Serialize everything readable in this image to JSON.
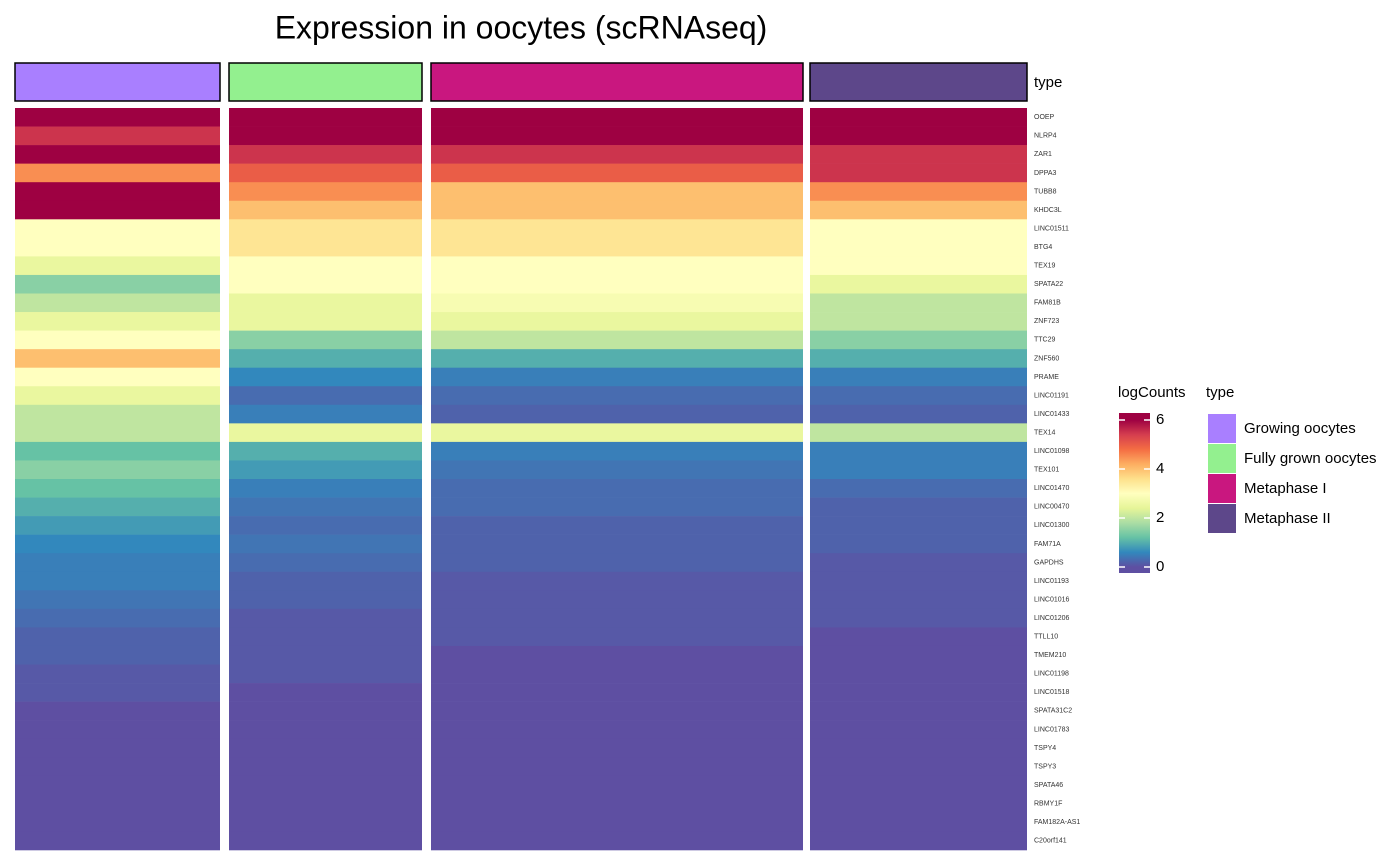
{
  "chart_data": {
    "type": "heatmap",
    "title": "Expression in oocytes (scRNAseq)",
    "annotation_label": "type",
    "categories": [
      "Growing oocytes",
      "Fully grown oocytes",
      "Metaphase I",
      "Metaphase II"
    ],
    "category_colors": [
      "#A97FFF",
      "#93F08F",
      "#C9177F",
      "#5D478A"
    ],
    "rows": [
      "OOEP",
      "NLRP4",
      "ZAR1",
      "DPPA3",
      "TUBB8",
      "KHDC3L",
      "LINC01511",
      "BTG4",
      "TEX19",
      "SPATA22",
      "FAM81B",
      "ZNF723",
      "TTC29",
      "ZNF560",
      "PRAME",
      "LINC01191",
      "LINC01433",
      "TEX14",
      "LINC01098",
      "TEX101",
      "LINC01470",
      "LINC00470",
      "LINC01300",
      "FAM71A",
      "GAPDHS",
      "LINC01193",
      "LINC01016",
      "LINC01206",
      "TTLL10",
      "TMEM210",
      "LINC01198",
      "LINC01518",
      "SPATA31C2",
      "LINC01783",
      "TSPY4",
      "TSPY3",
      "SPATA46",
      "RBMY1F",
      "FAM182A-AS1",
      "C20orf141"
    ],
    "values": [
      [
        6,
        6,
        6,
        6
      ],
      [
        5.5,
        6,
        6,
        6
      ],
      [
        6,
        5.5,
        5.5,
        5.5
      ],
      [
        4.5,
        5,
        5,
        5.5
      ],
      [
        6,
        4.5,
        4,
        4.5
      ],
      [
        6,
        4,
        4,
        4
      ],
      [
        3,
        3.5,
        3.5,
        3
      ],
      [
        3,
        3.5,
        3.5,
        3
      ],
      [
        2.5,
        3,
        3,
        3
      ],
      [
        1.5,
        3,
        3,
        2.5
      ],
      [
        2,
        2.5,
        2.8,
        2
      ],
      [
        2.5,
        2.5,
        2.5,
        2
      ],
      [
        3,
        1.5,
        2,
        1.5
      ],
      [
        4,
        1,
        1,
        1
      ],
      [
        3,
        0.6,
        0.5,
        0.5
      ],
      [
        2.5,
        0.3,
        0.3,
        0.3
      ],
      [
        2,
        0.5,
        0.2,
        0.2
      ],
      [
        2,
        2.5,
        2.5,
        2
      ],
      [
        1.2,
        1,
        0.5,
        0.5
      ],
      [
        1.5,
        0.8,
        0.4,
        0.5
      ],
      [
        1.2,
        0.5,
        0.3,
        0.3
      ],
      [
        1,
        0.4,
        0.3,
        0.2
      ],
      [
        0.8,
        0.3,
        0.2,
        0.2
      ],
      [
        0.6,
        0.4,
        0.2,
        0.2
      ],
      [
        0.5,
        0.3,
        0.2,
        0.1
      ],
      [
        0.5,
        0.2,
        0.1,
        0.1
      ],
      [
        0.4,
        0.2,
        0.1,
        0.1
      ],
      [
        0.3,
        0.1,
        0.1,
        0.1
      ],
      [
        0.2,
        0.1,
        0.1,
        0
      ],
      [
        0.2,
        0.1,
        0,
        0
      ],
      [
        0.1,
        0.1,
        0,
        0
      ],
      [
        0.1,
        0,
        0,
        0
      ],
      [
        0,
        0,
        0,
        0
      ],
      [
        0,
        0,
        0,
        0
      ],
      [
        0,
        0,
        0,
        0
      ],
      [
        0,
        0,
        0,
        0
      ],
      [
        0,
        0,
        0,
        0
      ],
      [
        0,
        0,
        0,
        0
      ],
      [
        0,
        0,
        0,
        0
      ],
      [
        0,
        0,
        0,
        0
      ]
    ],
    "colorbar_title": "logCounts",
    "colorbar_ticks": [
      0,
      2,
      4,
      6
    ],
    "colorscale": [
      [
        0,
        "#5E4FA2"
      ],
      [
        0.6,
        "#3288BD"
      ],
      [
        1.2,
        "#66C2A5"
      ],
      [
        1.8,
        "#ABDDA4"
      ],
      [
        2.4,
        "#E6F598"
      ],
      [
        3,
        "#FFFFBF"
      ],
      [
        3.6,
        "#FEE08B"
      ],
      [
        4.2,
        "#FDAE61"
      ],
      [
        4.8,
        "#F46D43"
      ],
      [
        5.4,
        "#D53E4F"
      ],
      [
        6,
        "#9E0142"
      ]
    ]
  }
}
